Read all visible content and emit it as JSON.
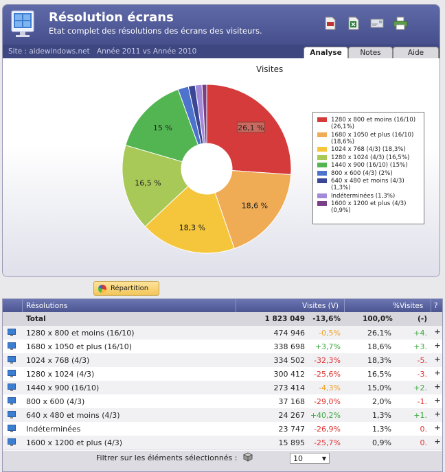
{
  "header": {
    "title": "Résolution écrans",
    "subtitle": "Etat complet des résolutions des écrans des visiteurs.",
    "site": "Site : aidewindows.net",
    "period": "Année 2011 vs Année 2010",
    "tabs": [
      {
        "label": "Analyse",
        "active": true
      },
      {
        "label": "Notes",
        "active": false
      },
      {
        "label": "Aide",
        "active": false
      }
    ]
  },
  "toolbar_icons": [
    "pdf-export-icon",
    "excel-export-icon",
    "email-icon",
    "print-icon"
  ],
  "chart_data": {
    "type": "pie",
    "style": "donut",
    "title": "Visites",
    "slices": [
      {
        "label": "1280 x 800 et moins (16/10)",
        "value": 26.1,
        "display": "26,1 %",
        "color": "#d63b3b"
      },
      {
        "label": "1680 x 1050 et plus (16/10)",
        "value": 18.6,
        "display": "18,6 %",
        "color": "#f0ab55"
      },
      {
        "label": "1024 x 768 (4/3)",
        "value": 18.3,
        "display": "18,3 %",
        "color": "#f5c63c"
      },
      {
        "label": "1280 x 1024 (4/3)",
        "value": 16.5,
        "display": "16,5 %",
        "color": "#a8c957"
      },
      {
        "label": "1440 x 900 (16/10)",
        "value": 15,
        "display": "15 %",
        "color": "#52b552"
      },
      {
        "label": "800 x 600 (4/3)",
        "value": 2,
        "display": "",
        "color": "#4d73cc"
      },
      {
        "label": "640 x 480 et moins (4/3)",
        "value": 1.3,
        "display": "",
        "color": "#3a4696"
      },
      {
        "label": "Indéterminées",
        "value": 1.3,
        "display": "",
        "color": "#a28ad8"
      },
      {
        "label": "1600 x 1200 et plus (4/3)",
        "value": 0.9,
        "display": "",
        "color": "#7a3e86"
      }
    ],
    "legend": [
      {
        "lines": [
          "1280 x 800 et moins (16/10)",
          "(26,1%)"
        ],
        "color": "#d63b3b"
      },
      {
        "lines": [
          "1680 x 1050 et plus (16/10)",
          "(18,6%)"
        ],
        "color": "#f0ab55"
      },
      {
        "lines": [
          "1024 x 768 (4/3)  (18,3%)"
        ],
        "color": "#f5c63c"
      },
      {
        "lines": [
          "1280 x 1024 (4/3)  (16,5%)"
        ],
        "color": "#a8c957"
      },
      {
        "lines": [
          "1440 x 900 (16/10)  (15%)"
        ],
        "color": "#52b552"
      },
      {
        "lines": [
          "800 x 600 (4/3)  (2%)"
        ],
        "color": "#4d73cc"
      },
      {
        "lines": [
          "640 x 480 et moins (4/3)",
          "(1,3%)"
        ],
        "color": "#3a4696"
      },
      {
        "lines": [
          "Indéterminées  (1,3%)"
        ],
        "color": "#a28ad8"
      },
      {
        "lines": [
          "1600 x 1200 et plus (4/3)",
          "(0,9%)"
        ],
        "color": "#7a3e86"
      }
    ],
    "legend_position": "right"
  },
  "repartition_button": "Répartition",
  "table": {
    "headers": {
      "resolution": "Résolutions",
      "visits": "Visites (V)",
      "pct": "%Visites",
      "help": "?"
    },
    "total": {
      "label": "Total",
      "visits": "1 823 049",
      "evol": "-13,6%",
      "pct": "100,0%",
      "pct_evol": "(-)"
    },
    "rows": [
      {
        "label": "1280 x 800 et moins (16/10)",
        "visits": "474 946",
        "evol": "-0,5%",
        "evol_class": "orange",
        "pct": "26,1%",
        "pct_evol": "+4.",
        "pct_class": "pos"
      },
      {
        "label": "1680 x 1050 et plus (16/10)",
        "visits": "338 698",
        "evol": "+3,7%",
        "evol_class": "pos",
        "pct": "18,6%",
        "pct_evol": "+3.",
        "pct_class": "pos"
      },
      {
        "label": "1024 x 768 (4/3)",
        "visits": "334 502",
        "evol": "-32,3%",
        "evol_class": "neg",
        "pct": "18,3%",
        "pct_evol": "-5.",
        "pct_class": "neg"
      },
      {
        "label": "1280 x 1024 (4/3)",
        "visits": "300 412",
        "evol": "-25,6%",
        "evol_class": "neg",
        "pct": "16,5%",
        "pct_evol": "-3.",
        "pct_class": "neg"
      },
      {
        "label": "1440 x 900 (16/10)",
        "visits": "273 414",
        "evol": "-4,3%",
        "evol_class": "orange",
        "pct": "15,0%",
        "pct_evol": "+2.",
        "pct_class": "pos"
      },
      {
        "label": "800 x 600 (4/3)",
        "visits": "37 168",
        "evol": "-29,0%",
        "evol_class": "neg",
        "pct": "2,0%",
        "pct_evol": "-1.",
        "pct_class": "neg"
      },
      {
        "label": "640 x 480 et moins (4/3)",
        "visits": "24 267",
        "evol": "+40,2%",
        "evol_class": "pos",
        "pct": "1,3%",
        "pct_evol": "+1.",
        "pct_class": "pos"
      },
      {
        "label": "Indéterminées",
        "visits": "23 747",
        "evol": "-26,9%",
        "evol_class": "neg",
        "pct": "1,3%",
        "pct_evol": "0.",
        "pct_class": "neg"
      },
      {
        "label": "1600 x 1200 et plus (4/3)",
        "visits": "15 895",
        "evol": "-25,7%",
        "evol_class": "neg",
        "pct": "0,9%",
        "pct_evol": "0.",
        "pct_class": "neg"
      }
    ],
    "expand_symbol": "+"
  },
  "footer": {
    "filter_label": "Filtrer sur les éléments sélectionnés :",
    "page_size": "10"
  }
}
